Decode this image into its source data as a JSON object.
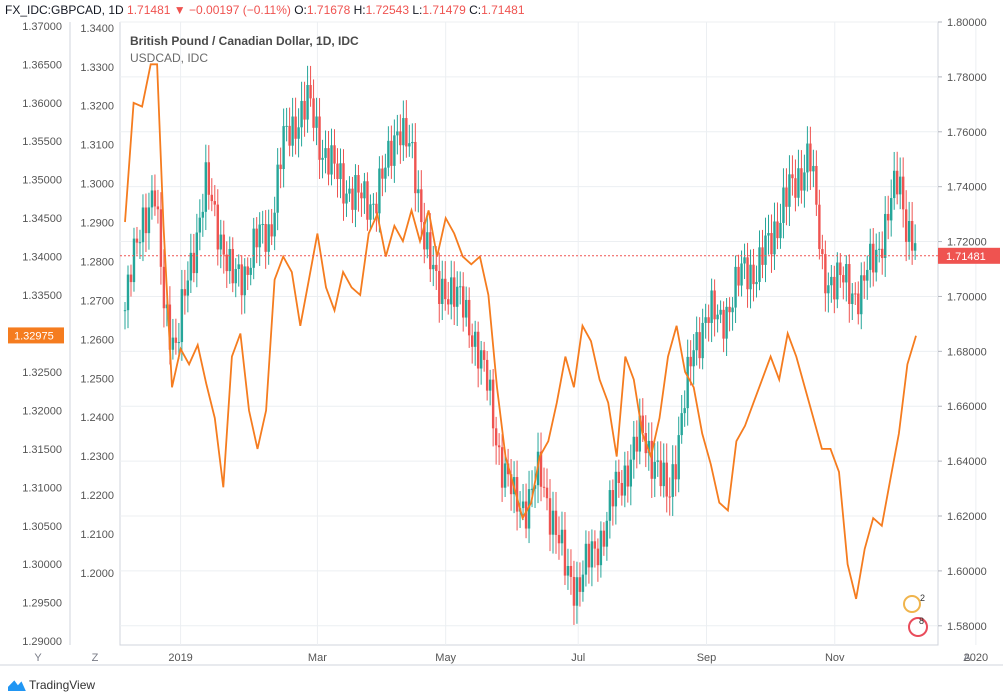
{
  "header": {
    "symbol": "FX_IDC:GBPCAD, 1D",
    "last": "1.71481",
    "change": "−0.00197 (−0.11%)",
    "o_label": "O:",
    "o_val": "1.71678",
    "h_label": "H:",
    "h_val": "1.72543",
    "l_label": "L:",
    "l_val": "1.71479",
    "c_label": "C:",
    "c_val": "1.71481"
  },
  "legend": {
    "line1": "British Pound / Canadian Dollar, 1D, IDC",
    "line2": "USDCAD, IDC"
  },
  "footer": {
    "brand": "TradingView",
    "btn_y": "Y",
    "btn_z": "Z",
    "btn_a": "A"
  },
  "colors": {
    "up": "#26a69a",
    "down": "#ef5350",
    "overlay": "#f57c1f",
    "badge_right": "#ef5350",
    "badge_left": "#f57c1f",
    "grid": "#eceff2"
  },
  "chart_data": {
    "type": "candlestick",
    "x_ticks": [
      "2019",
      "Mar",
      "May",
      "Jul",
      "Sep",
      "Nov",
      "2020"
    ],
    "right_axis": {
      "series": "GBPCAD",
      "ticks": [
        "1.80000",
        "1.78000",
        "1.76000",
        "1.74000",
        "1.72000",
        "1.70000",
        "1.68000",
        "1.66000",
        "1.64000",
        "1.62000",
        "1.60000",
        "1.58000"
      ],
      "range": [
        1.573,
        1.8
      ],
      "current": "1.71481"
    },
    "left_axis_outer": {
      "series": "USDCAD",
      "ticks": [
        "1.37000",
        "1.36500",
        "1.36000",
        "1.35500",
        "1.35000",
        "1.34500",
        "1.34000",
        "1.33500",
        "1.33000",
        "1.32500",
        "1.32000",
        "1.31500",
        "1.31000",
        "1.30500",
        "1.30000",
        "1.29500",
        "1.29000"
      ],
      "range": [
        1.2895,
        1.3705
      ],
      "current": "1.32975"
    },
    "left_axis_inner": {
      "ticks": [
        "1.3400",
        "1.3300",
        "1.3200",
        "1.3100",
        "1.3000",
        "1.2900",
        "1.2800",
        "1.2700",
        "1.2600",
        "1.2500",
        "1.2400",
        "1.2300",
        "1.2200",
        "1.2100",
        "1.2000"
      ],
      "range": [
        1.1815,
        1.3415
      ]
    },
    "gbpcad_close_path": [
      [
        0,
        1.695
      ],
      [
        8,
        1.73
      ],
      [
        14,
        1.735
      ],
      [
        18,
        1.7
      ],
      [
        24,
        1.68
      ],
      [
        30,
        1.71
      ],
      [
        38,
        1.74
      ],
      [
        44,
        1.725
      ],
      [
        50,
        1.705
      ],
      [
        56,
        1.71
      ],
      [
        62,
        1.72
      ],
      [
        68,
        1.725
      ],
      [
        74,
        1.755
      ],
      [
        80,
        1.765
      ],
      [
        86,
        1.77
      ],
      [
        92,
        1.755
      ],
      [
        98,
        1.745
      ],
      [
        104,
        1.74
      ],
      [
        110,
        1.735
      ],
      [
        116,
        1.735
      ],
      [
        122,
        1.745
      ],
      [
        128,
        1.765
      ],
      [
        134,
        1.75
      ],
      [
        140,
        1.725
      ],
      [
        146,
        1.7
      ],
      [
        152,
        1.705
      ],
      [
        158,
        1.695
      ],
      [
        164,
        1.685
      ],
      [
        170,
        1.665
      ],
      [
        176,
        1.64
      ],
      [
        182,
        1.625
      ],
      [
        188,
        1.625
      ],
      [
        194,
        1.635
      ],
      [
        200,
        1.62
      ],
      [
        206,
        1.6
      ],
      [
        212,
        1.595
      ],
      [
        218,
        1.605
      ],
      [
        224,
        1.615
      ],
      [
        230,
        1.63
      ],
      [
        236,
        1.64
      ],
      [
        242,
        1.65
      ],
      [
        248,
        1.64
      ],
      [
        254,
        1.625
      ],
      [
        260,
        1.655
      ],
      [
        266,
        1.68
      ],
      [
        272,
        1.695
      ],
      [
        278,
        1.69
      ],
      [
        284,
        1.7
      ],
      [
        290,
        1.71
      ],
      [
        296,
        1.71
      ],
      [
        302,
        1.72
      ],
      [
        308,
        1.735
      ],
      [
        314,
        1.74
      ],
      [
        320,
        1.755
      ],
      [
        326,
        1.71
      ],
      [
        332,
        1.705
      ],
      [
        338,
        1.705
      ],
      [
        344,
        1.7
      ],
      [
        350,
        1.715
      ],
      [
        356,
        1.725
      ],
      [
        362,
        1.745
      ],
      [
        366,
        1.725
      ],
      [
        370,
        1.7148
      ]
    ],
    "usdcad_path": [
      [
        0,
        1.3445
      ],
      [
        4,
        1.36
      ],
      [
        8,
        1.3595
      ],
      [
        12,
        1.365
      ],
      [
        15,
        1.365
      ],
      [
        18,
        1.344
      ],
      [
        22,
        1.323
      ],
      [
        26,
        1.328
      ],
      [
        30,
        1.326
      ],
      [
        34,
        1.3285
      ],
      [
        38,
        1.3235
      ],
      [
        42,
        1.319
      ],
      [
        46,
        1.31
      ],
      [
        50,
        1.327
      ],
      [
        54,
        1.33
      ],
      [
        58,
        1.32
      ],
      [
        62,
        1.315
      ],
      [
        66,
        1.32
      ],
      [
        70,
        1.337
      ],
      [
        74,
        1.34
      ],
      [
        78,
        1.338
      ],
      [
        82,
        1.331
      ],
      [
        86,
        1.337
      ],
      [
        90,
        1.343
      ],
      [
        94,
        1.336
      ],
      [
        98,
        1.333
      ],
      [
        102,
        1.338
      ],
      [
        106,
        1.336
      ],
      [
        110,
        1.335
      ],
      [
        114,
        1.343
      ],
      [
        118,
        1.3455
      ],
      [
        122,
        1.34
      ],
      [
        126,
        1.344
      ],
      [
        130,
        1.342
      ],
      [
        134,
        1.346
      ],
      [
        138,
        1.342
      ],
      [
        142,
        1.346
      ],
      [
        146,
        1.34
      ],
      [
        150,
        1.345
      ],
      [
        154,
        1.343
      ],
      [
        158,
        1.34
      ],
      [
        162,
        1.339
      ],
      [
        166,
        1.34
      ],
      [
        170,
        1.335
      ],
      [
        174,
        1.323
      ],
      [
        178,
        1.314
      ],
      [
        182,
        1.31
      ],
      [
        186,
        1.306
      ],
      [
        190,
        1.308
      ],
      [
        194,
        1.314
      ],
      [
        198,
        1.316
      ],
      [
        202,
        1.321
      ],
      [
        206,
        1.327
      ],
      [
        210,
        1.323
      ],
      [
        214,
        1.331
      ],
      [
        218,
        1.329
      ],
      [
        222,
        1.324
      ],
      [
        226,
        1.321
      ],
      [
        230,
        1.314
      ],
      [
        234,
        1.327
      ],
      [
        238,
        1.324
      ],
      [
        242,
        1.317
      ],
      [
        246,
        1.314
      ],
      [
        250,
        1.319
      ],
      [
        254,
        1.327
      ],
      [
        258,
        1.331
      ],
      [
        262,
        1.325
      ],
      [
        266,
        1.323
      ],
      [
        270,
        1.317
      ],
      [
        274,
        1.313
      ],
      [
        278,
        1.308
      ],
      [
        282,
        1.307
      ],
      [
        286,
        1.316
      ],
      [
        290,
        1.318
      ],
      [
        294,
        1.321
      ],
      [
        298,
        1.324
      ],
      [
        302,
        1.327
      ],
      [
        306,
        1.324
      ],
      [
        310,
        1.33
      ],
      [
        314,
        1.327
      ],
      [
        318,
        1.323
      ],
      [
        322,
        1.319
      ],
      [
        326,
        1.315
      ],
      [
        330,
        1.315
      ],
      [
        334,
        1.312
      ],
      [
        338,
        1.3
      ],
      [
        342,
        1.2955
      ],
      [
        346,
        1.302
      ],
      [
        350,
        1.306
      ],
      [
        354,
        1.305
      ],
      [
        358,
        1.311
      ],
      [
        362,
        1.317
      ],
      [
        366,
        1.326
      ],
      [
        370,
        1.3297
      ]
    ],
    "last_close_gbpcad": 1.71481,
    "last_usdcad": 1.32975
  }
}
